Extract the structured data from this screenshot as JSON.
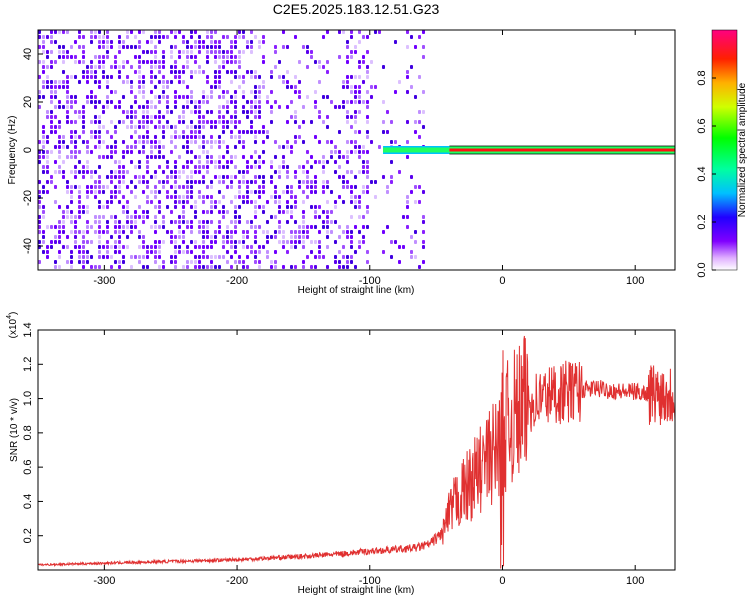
{
  "title": "C2E5.2025.183.12.51.G23",
  "chart_data": [
    {
      "type": "heatmap",
      "xlabel": "Height of straight line (km)",
      "ylabel": "Frequency (Hz)",
      "xlim": [
        -350,
        130
      ],
      "ylim": [
        -50,
        50
      ],
      "x_ticks": [
        -300,
        -200,
        -100,
        0,
        100
      ],
      "y_ticks": [
        -40,
        -20,
        0,
        20,
        40
      ],
      "colorbar": {
        "label": "Normalized spectral amplitude",
        "range": [
          0,
          1
        ],
        "ticks": [
          "0.0",
          "0.2",
          "0.4",
          "0.6",
          "0.8"
        ],
        "tick_values": [
          0.0,
          0.2,
          0.4,
          0.6,
          0.8
        ],
        "colors": [
          "#ffffff",
          "#cc66ff",
          "#7f00ff",
          "#0000ff",
          "#00ffff",
          "#00ff00",
          "#ffff00",
          "#ff8000",
          "#ff0000",
          "#ff0080"
        ]
      },
      "features": {
        "noise_region_x": [
          -350,
          -60
        ],
        "signal_line_x": [
          -90,
          130
        ],
        "signal_line_freq": 0,
        "high_amplitude_start_x": -40
      }
    },
    {
      "type": "line",
      "xlabel": "Height of straight line (km)",
      "ylabel": "SNR (10 * v/v)",
      "y_multiplier": "(x10",
      "y_multiplier_exp": "4",
      "y_multiplier_close": ")",
      "xlim": [
        -350,
        130
      ],
      "ylim": [
        0,
        14000
      ],
      "x_ticks": [
        -300,
        -200,
        -100,
        0,
        100
      ],
      "y_ticks": [
        "0.2",
        "0.4",
        "0.6",
        "0.8",
        "1.0",
        "1.2",
        "1.4"
      ],
      "y_tick_values": [
        2000,
        4000,
        6000,
        8000,
        10000,
        12000,
        14000
      ],
      "color": "#e03030",
      "series": [
        {
          "x": [
            -350,
            -300,
            -250,
            -200,
            -150,
            -120,
            -100,
            -80,
            -65,
            -55,
            -45,
            -40,
            -35,
            -30,
            -25,
            -20,
            -15,
            -10,
            -5,
            -2,
            0,
            2,
            5,
            10,
            15,
            20,
            30,
            40,
            50,
            60,
            70,
            80,
            90,
            100,
            110,
            120,
            130
          ],
          "y": [
            300,
            400,
            500,
            600,
            800,
            950,
            1100,
            1200,
            1300,
            1500,
            2200,
            3200,
            4000,
            4500,
            5000,
            5500,
            6000,
            6500,
            7000,
            7500,
            8000,
            8200,
            8600,
            9000,
            9400,
            9700,
            10100,
            10300,
            10400,
            10500,
            10600,
            10500,
            10400,
            10400,
            10300,
            10300,
            10200
          ]
        }
      ]
    }
  ]
}
